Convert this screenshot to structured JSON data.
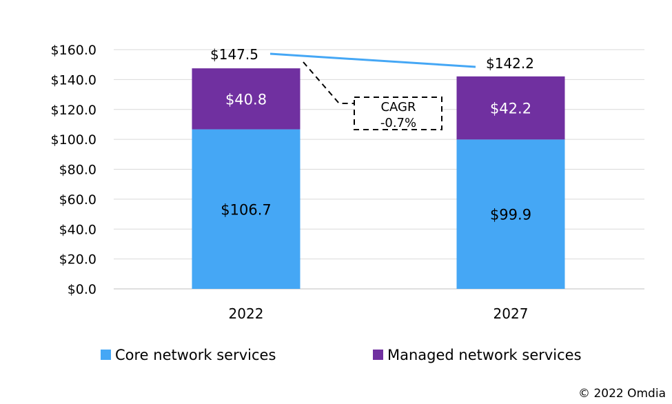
{
  "chart_data": {
    "type": "bar",
    "stacked": true,
    "categories": [
      "2022",
      "2027"
    ],
    "series": [
      {
        "name": "Core network services",
        "values": [
          106.7,
          99.9
        ],
        "labels": [
          "$106.7",
          "$99.9"
        ],
        "color": "#45A7F5",
        "label_color": "#000000"
      },
      {
        "name": "Managed network services",
        "values": [
          40.8,
          42.2
        ],
        "labels": [
          "$40.8",
          "$42.2"
        ],
        "color": "#7030A0",
        "label_color": "#ffffff"
      }
    ],
    "totals": [
      147.5,
      142.2
    ],
    "total_labels": [
      "$147.5",
      "$142.2"
    ],
    "ylim": [
      0,
      160
    ],
    "yticks": [
      0,
      20,
      40,
      60,
      80,
      100,
      120,
      140,
      160
    ],
    "ytick_labels": [
      "$0.0",
      "$20.0",
      "$40.0",
      "$60.0",
      "$80.0",
      "$100.0",
      "$120.0",
      "$140.0",
      "$160.0"
    ],
    "grid": true,
    "legend_position": "bottom",
    "trend_color": "#45A7F5",
    "cagr": {
      "line1": "CAGR",
      "line2": "-0.7%"
    }
  },
  "copyright": "© 2022 Omdia"
}
